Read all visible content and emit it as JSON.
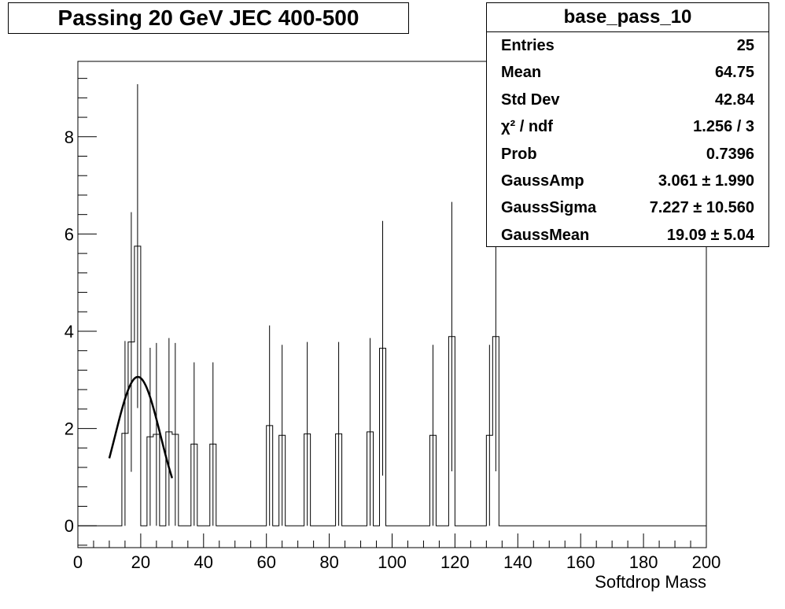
{
  "title": "Passing 20 GeV JEC 400-500",
  "stats": {
    "name": "base_pass_10",
    "rows": [
      {
        "label": "Entries",
        "value": "25"
      },
      {
        "label": "Mean",
        "value": "64.75"
      },
      {
        "label": "Std Dev",
        "value": "42.84"
      },
      {
        "label": "χ² / ndf",
        "value": "1.256 / 3"
      },
      {
        "label": "Prob",
        "value": "0.7396"
      },
      {
        "label": "GaussAmp",
        "value": "3.061 ± 1.990"
      },
      {
        "label": "GaussSigma",
        "value": "7.227 ± 10.560"
      },
      {
        "label": "GaussMean",
        "value": "19.09 ± 5.04"
      }
    ]
  },
  "chart_data": {
    "type": "bar",
    "title": "Passing 20 GeV JEC 400-500",
    "xlabel": "Softdrop Mass",
    "ylabel": "",
    "xlim": [
      0,
      200
    ],
    "ylim": [
      -0.45,
      9.55
    ],
    "x_ticks": [
      "0",
      "20",
      "40",
      "60",
      "80",
      "100",
      "120",
      "140",
      "160",
      "180",
      "200"
    ],
    "y_ticks": [
      "0",
      "2",
      "4",
      "6",
      "8"
    ],
    "bin_width": 2,
    "bins": [
      {
        "x": 14,
        "y": 1.9,
        "err": 1.9
      },
      {
        "x": 16,
        "y": 3.78,
        "err": 2.67
      },
      {
        "x": 18,
        "y": 5.75,
        "err": 3.33
      },
      {
        "x": 22,
        "y": 1.83,
        "err": 1.83
      },
      {
        "x": 24,
        "y": 1.88,
        "err": 1.88
      },
      {
        "x": 28,
        "y": 1.93,
        "err": 1.93
      },
      {
        "x": 30,
        "y": 1.88,
        "err": 1.88
      },
      {
        "x": 36,
        "y": 1.68,
        "err": 1.68
      },
      {
        "x": 42,
        "y": 1.68,
        "err": 1.68
      },
      {
        "x": 60,
        "y": 2.06,
        "err": 2.06
      },
      {
        "x": 64,
        "y": 1.86,
        "err": 1.86
      },
      {
        "x": 72,
        "y": 1.89,
        "err": 1.89
      },
      {
        "x": 82,
        "y": 1.89,
        "err": 1.89
      },
      {
        "x": 92,
        "y": 1.93,
        "err": 1.93
      },
      {
        "x": 96,
        "y": 3.65,
        "err": 2.62
      },
      {
        "x": 112,
        "y": 1.86,
        "err": 1.86
      },
      {
        "x": 118,
        "y": 3.89,
        "err": 2.77
      },
      {
        "x": 130,
        "y": 1.86,
        "err": 1.86
      },
      {
        "x": 132,
        "y": 3.89,
        "err": 2.77
      }
    ],
    "fit": {
      "function": "gaussian",
      "amplitude": 3.061,
      "mean": 19.09,
      "sigma": 7.227,
      "x_range": [
        10,
        30
      ]
    },
    "grid": false,
    "legend": "top-right"
  }
}
